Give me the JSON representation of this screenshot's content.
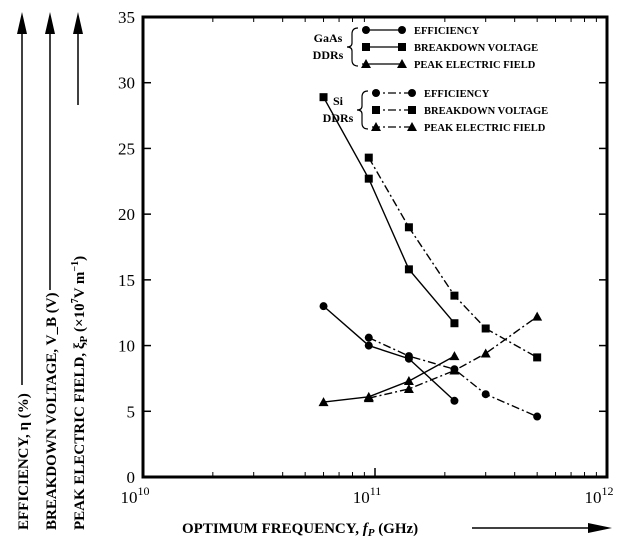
{
  "chart_data": {
    "type": "line",
    "title": "",
    "xlabel": "OPTIMUM FREQUENCY, f_P (GHz)",
    "ylabels": [
      "EFFICIENCY, η (%)",
      "BREAKDOWN VOLTAGE, V_B (V)",
      "PEAK ELECTRIC FIELD, ξ_P (×10^7 V m^-1)"
    ],
    "xscale": "log",
    "xlim": [
      10000000000.0,
      1000000000000.0
    ],
    "ylim": [
      0,
      35
    ],
    "xticks": [
      {
        "base": "10",
        "exp": "10",
        "value": 10000000000.0
      },
      {
        "base": "10",
        "exp": "11",
        "value": 100000000000.0
      },
      {
        "base": "10",
        "exp": "12",
        "value": 1000000000000.0
      }
    ],
    "yticks": [
      "0",
      "5",
      "10",
      "15",
      "20",
      "25",
      "30",
      "35"
    ],
    "grid": false,
    "legend_position": "top-right",
    "legend_groups": [
      {
        "label_line1": "GaAs",
        "label_line2": "DDRs"
      },
      {
        "label_line1": "Si",
        "label_line2": "DDRs"
      }
    ],
    "series": [
      {
        "name": "EFFICIENCY",
        "group": 0,
        "marker": "circle",
        "dash": "solid",
        "points": [
          [
            60000000000.0,
            13.0
          ],
          [
            94000000000.0,
            10.0
          ],
          [
            140000000000.0,
            9.0
          ],
          [
            220000000000.0,
            5.8
          ]
        ]
      },
      {
        "name": "BREAKDOWN VOLTAGE",
        "group": 0,
        "marker": "square",
        "dash": "solid",
        "points": [
          [
            60000000000.0,
            28.9
          ],
          [
            94000000000.0,
            22.7
          ],
          [
            140000000000.0,
            15.8
          ],
          [
            220000000000.0,
            11.7
          ]
        ]
      },
      {
        "name": "PEAK ELECTRIC FIELD",
        "group": 0,
        "marker": "triangle",
        "dash": "solid",
        "points": [
          [
            60000000000.0,
            5.7
          ],
          [
            94000000000.0,
            6.1
          ],
          [
            140000000000.0,
            7.3
          ],
          [
            220000000000.0,
            9.2
          ]
        ]
      },
      {
        "name": "EFFICIENCY",
        "group": 1,
        "marker": "circle",
        "dash": "dashdot",
        "points": [
          [
            94000000000.0,
            10.6
          ],
          [
            140000000000.0,
            9.2
          ],
          [
            220000000000.0,
            8.2
          ],
          [
            300000000000.0,
            6.3
          ],
          [
            500000000000.0,
            4.6
          ]
        ]
      },
      {
        "name": "BREAKDOWN VOLTAGE",
        "group": 1,
        "marker": "square",
        "dash": "dashdot",
        "points": [
          [
            94000000000.0,
            24.3
          ],
          [
            140000000000.0,
            19.0
          ],
          [
            220000000000.0,
            13.8
          ],
          [
            300000000000.0,
            11.3
          ],
          [
            500000000000.0,
            9.1
          ]
        ]
      },
      {
        "name": "PEAK ELECTRIC FIELD",
        "group": 1,
        "marker": "triangle",
        "dash": "dashdot",
        "points": [
          [
            94000000000.0,
            6.0
          ],
          [
            140000000000.0,
            6.7
          ],
          [
            220000000000.0,
            8.1
          ],
          [
            300000000000.0,
            9.4
          ],
          [
            500000000000.0,
            12.2
          ]
        ]
      }
    ]
  }
}
